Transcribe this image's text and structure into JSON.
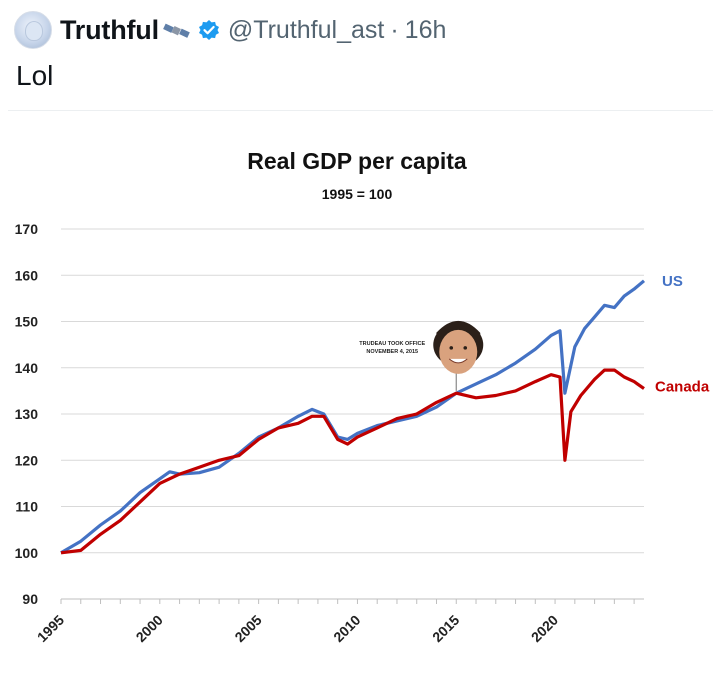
{
  "tweet": {
    "display_name": "Truthful",
    "handle": "@Truthful_ast",
    "separator": "·",
    "time": "16h",
    "text": "Lol",
    "icons": [
      "avatar",
      "satellite-icon",
      "verified-icon"
    ],
    "verified_color": "#1d9bf0"
  },
  "chart_data": {
    "type": "line",
    "title": "Real GDP per capita",
    "subtitle": "1995 = 100",
    "xlabel": "",
    "ylabel": "",
    "xlim": [
      1995,
      2024.5
    ],
    "ylim": [
      90,
      170
    ],
    "yticks": [
      90,
      100,
      110,
      120,
      130,
      140,
      150,
      160,
      170
    ],
    "xticks": [
      "1995",
      "2000",
      "2005",
      "2010",
      "2015",
      "2020"
    ],
    "grid": true,
    "annotation": {
      "line1": "TRUDEAU TOOK OFFICE",
      "line2": "NOVEMBER 4, 2015",
      "x": 2015,
      "y": 135,
      "image": "portrait-photo"
    },
    "series": [
      {
        "name": "US",
        "color": "#4472c4",
        "x": [
          1995,
          1996,
          1997,
          1998,
          1999,
          2000,
          2000.5,
          2001,
          2002,
          2003,
          2004,
          2005,
          2006,
          2007,
          2007.7,
          2008.3,
          2009,
          2009.5,
          2010,
          2011,
          2012,
          2013,
          2014,
          2015,
          2016,
          2017,
          2018,
          2019,
          2019.8,
          2020.25,
          2020.5,
          2021,
          2021.5,
          2022,
          2022.5,
          2023,
          2023.5,
          2024,
          2024.5
        ],
        "values": [
          100,
          102.5,
          106,
          109,
          113,
          116,
          117.5,
          117,
          117.3,
          118.5,
          121.5,
          125,
          127,
          129.5,
          131,
          130,
          125,
          124.5,
          125.8,
          127.5,
          128.5,
          129.5,
          131.5,
          134.5,
          136.5,
          138.5,
          141,
          144,
          147,
          148,
          134.5,
          144.5,
          148.5,
          151,
          153.5,
          153,
          155.5,
          157,
          158.8
        ]
      },
      {
        "name": "Canada",
        "color": "#c00000",
        "x": [
          1995,
          1996,
          1997,
          1998,
          1999,
          2000,
          2001,
          2002,
          2003,
          2004,
          2005,
          2006,
          2007,
          2007.7,
          2008.3,
          2009,
          2009.5,
          2010,
          2011,
          2012,
          2013,
          2014,
          2015,
          2016,
          2017,
          2018,
          2019,
          2019.8,
          2020.25,
          2020.5,
          2020.8,
          2021.3,
          2022,
          2022.5,
          2023,
          2023.5,
          2024,
          2024.5
        ],
        "values": [
          100,
          100.5,
          104,
          107,
          111,
          115,
          117,
          118.5,
          120,
          121,
          124.5,
          127,
          128,
          129.5,
          129.5,
          124.5,
          123.5,
          125,
          127,
          129,
          130,
          132.5,
          134.5,
          133.5,
          134,
          135,
          137,
          138.5,
          138,
          120,
          130.5,
          134,
          137.5,
          139.5,
          139.5,
          138,
          137,
          135.5
        ]
      }
    ]
  }
}
